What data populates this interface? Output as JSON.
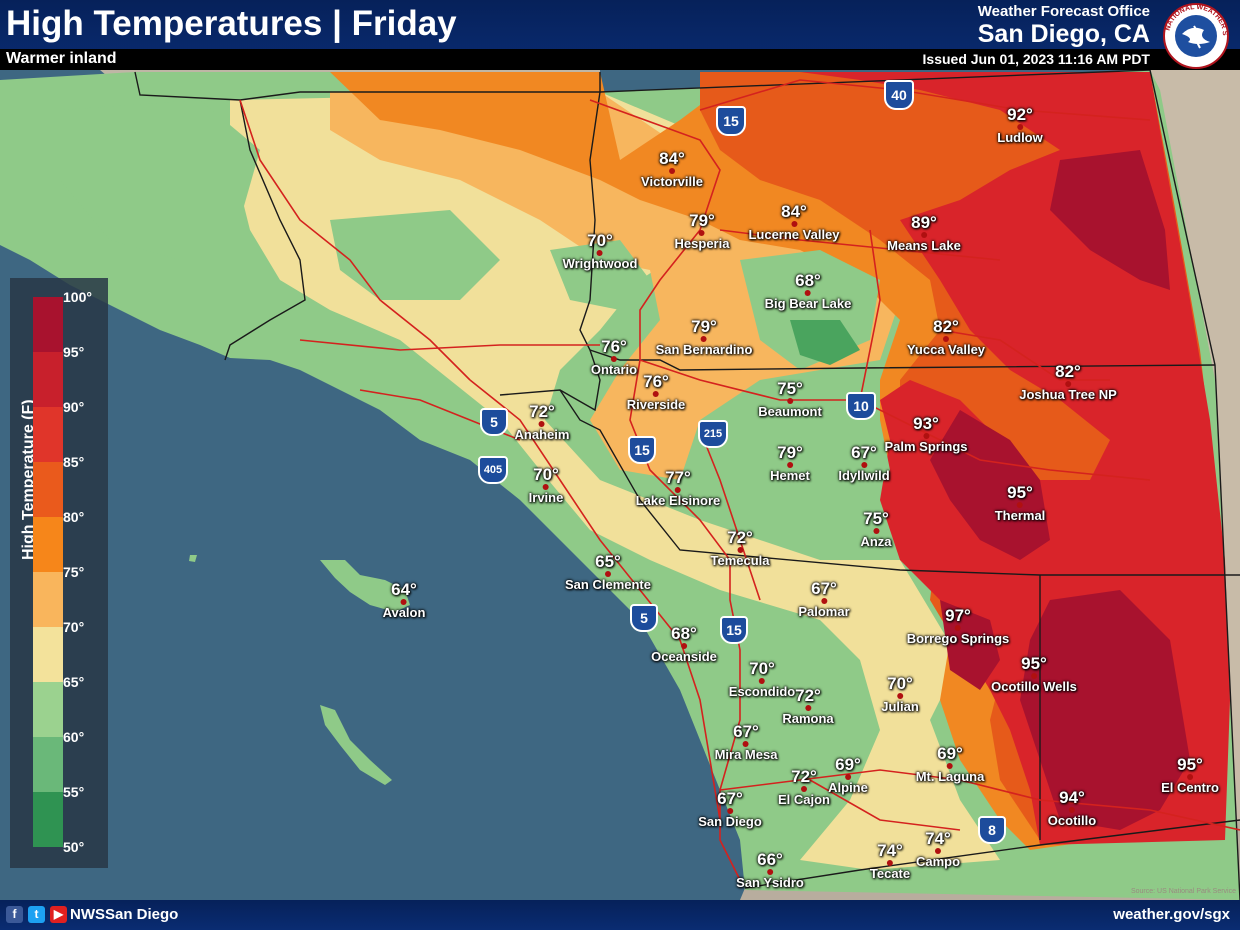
{
  "header": {
    "title": "High Temperatures | Friday",
    "subtitle": "Warmer inland",
    "office_line1": "Weather Forecast Office",
    "office_line2": "San Diego, CA",
    "issued": "Issued Jun 01, 2023 11:16 AM PDT"
  },
  "logo": {
    "icon": "nws-logo-icon",
    "text": "NATIONAL WEATHER SERVICE"
  },
  "legend": {
    "title": "High Temperature (F)",
    "ticks": [
      "100°",
      "95°",
      "90°",
      "85°",
      "80°",
      "75°",
      "70°",
      "65°",
      "60°",
      "55°",
      "50°"
    ],
    "colors": [
      "#a8122e",
      "#c8202c",
      "#e0352a",
      "#ea5a1c",
      "#f6861a",
      "#f9b55c",
      "#f3e29b",
      "#9bd28f",
      "#6ab879",
      "#2f9352",
      "#17673a"
    ]
  },
  "cities": [
    {
      "name": "Ludlow",
      "temp": "92°"
    },
    {
      "name": "Victorville",
      "temp": "84°"
    },
    {
      "name": "Hesperia",
      "temp": "79°"
    },
    {
      "name": "Lucerne Valley",
      "temp": "84°"
    },
    {
      "name": "Means Lake",
      "temp": "89°"
    },
    {
      "name": "Wrightwood",
      "temp": "70°"
    },
    {
      "name": "Big Bear Lake",
      "temp": "68°"
    },
    {
      "name": "Yucca Valley",
      "temp": "82°"
    },
    {
      "name": "San Bernardino",
      "temp": "79°"
    },
    {
      "name": "Ontario",
      "temp": "76°"
    },
    {
      "name": "Riverside",
      "temp": "76°"
    },
    {
      "name": "Joshua Tree NP",
      "temp": "82°"
    },
    {
      "name": "Beaumont",
      "temp": "75°"
    },
    {
      "name": "Anaheim",
      "temp": "72°"
    },
    {
      "name": "Palm Springs",
      "temp": "93°"
    },
    {
      "name": "Hemet",
      "temp": "79°"
    },
    {
      "name": "Idyllwild",
      "temp": "67°"
    },
    {
      "name": "Irvine",
      "temp": "70°"
    },
    {
      "name": "Lake Elsinore",
      "temp": "77°"
    },
    {
      "name": "Thermal",
      "temp": "95°"
    },
    {
      "name": "Anza",
      "temp": "75°"
    },
    {
      "name": "Temecula",
      "temp": "72°"
    },
    {
      "name": "San Clemente",
      "temp": "65°"
    },
    {
      "name": "Avalon",
      "temp": "64°"
    },
    {
      "name": "Palomar",
      "temp": "67°"
    },
    {
      "name": "Borrego Springs",
      "temp": "97°"
    },
    {
      "name": "Oceanside",
      "temp": "68°"
    },
    {
      "name": "Ocotillo Wells",
      "temp": "95°"
    },
    {
      "name": "Escondido",
      "temp": "70°"
    },
    {
      "name": "Ramona",
      "temp": "72°"
    },
    {
      "name": "Julian",
      "temp": "70°"
    },
    {
      "name": "Mira Mesa",
      "temp": "67°"
    },
    {
      "name": "Mt. Laguna",
      "temp": "69°"
    },
    {
      "name": "El Cajon",
      "temp": "72°"
    },
    {
      "name": "Alpine",
      "temp": "69°"
    },
    {
      "name": "El Centro",
      "temp": "95°"
    },
    {
      "name": "San Diego",
      "temp": "67°"
    },
    {
      "name": "Ocotillo",
      "temp": "94°"
    },
    {
      "name": "Tecate",
      "temp": "74°"
    },
    {
      "name": "Campo",
      "temp": "74°"
    },
    {
      "name": "San Ysidro",
      "temp": "66°"
    }
  ],
  "interstates": [
    "15",
    "40",
    "5",
    "405",
    "215",
    "10",
    "8"
  ],
  "footer": {
    "handle": "NWSSan Diego",
    "website": "weather.gov/sgx",
    "social_icons": [
      "facebook-icon",
      "twitter-icon",
      "youtube-icon"
    ]
  },
  "attribution": "Source: US National Park Service"
}
